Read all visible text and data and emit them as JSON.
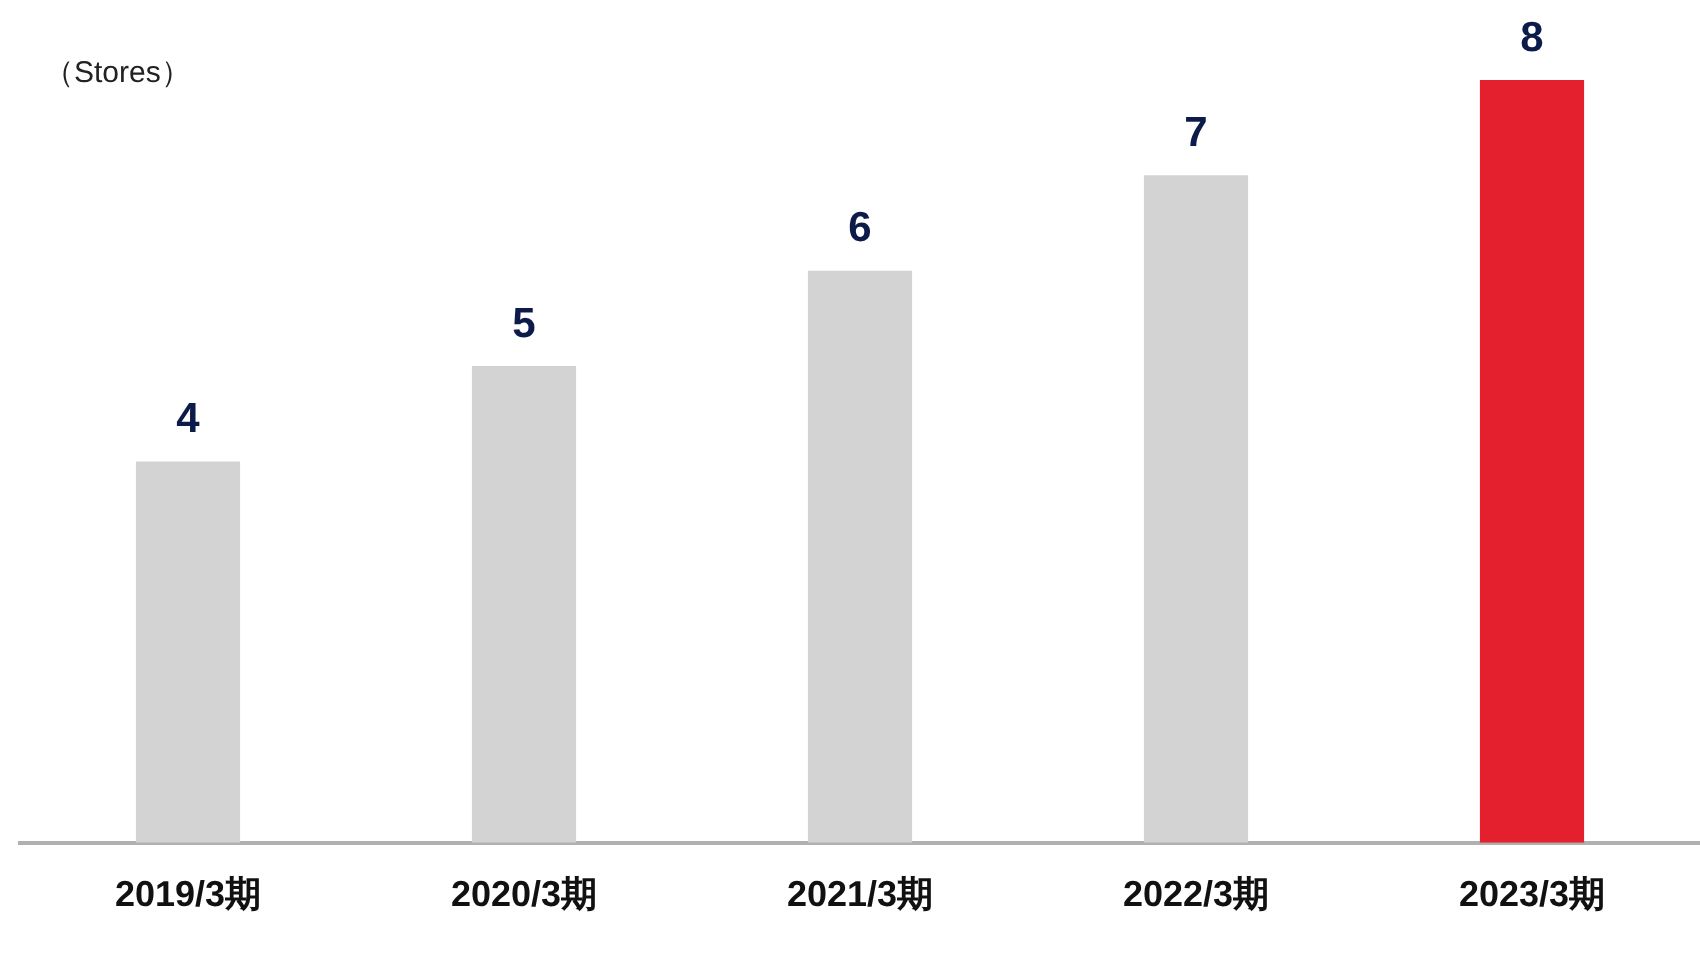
{
  "chart_data": {
    "type": "bar",
    "ylabel": "（Stores）",
    "categories": [
      "2019/3期",
      "2020/3期",
      "2021/3期",
      "2022/3期",
      "2023/3期"
    ],
    "values": [
      4,
      5,
      6,
      7,
      8
    ],
    "colors": [
      "#d3d3d3",
      "#d3d3d3",
      "#d3d3d3",
      "#d3d3d3",
      "#e5202e"
    ],
    "data_labels": true,
    "legend": false
  }
}
